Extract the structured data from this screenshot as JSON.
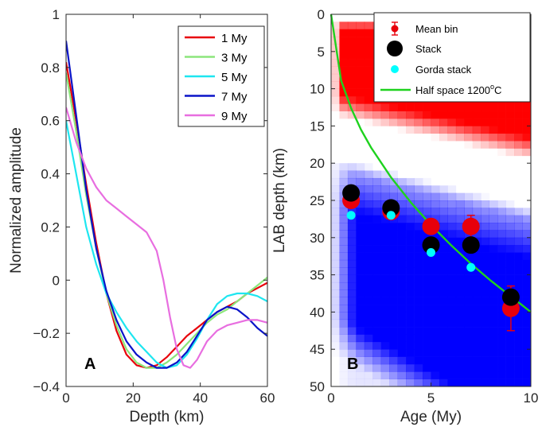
{
  "chart_data": [
    {
      "type": "line",
      "panel_label": "A",
      "xlabel": "Depth (km)",
      "ylabel": "Normalized amplitude",
      "xlim": [
        0,
        60
      ],
      "ylim": [
        -0.4,
        1
      ],
      "xticks": [
        "0",
        "20",
        "40",
        "60"
      ],
      "yticks": [
        "−0.4",
        "−0.2",
        "0",
        "0.2",
        "0.4",
        "0.6",
        "0.8",
        "1"
      ],
      "legend_position": "top-right",
      "series": [
        {
          "name": "1 My",
          "color": "#e8000b",
          "x": [
            0,
            3,
            6,
            9,
            12,
            15,
            18,
            21,
            24,
            27,
            30,
            33,
            36,
            39,
            42,
            45,
            48,
            51,
            54,
            57,
            60
          ],
          "y": [
            0.82,
            0.6,
            0.36,
            0.14,
            -0.05,
            -0.19,
            -0.28,
            -0.32,
            -0.33,
            -0.32,
            -0.29,
            -0.25,
            -0.21,
            -0.18,
            -0.15,
            -0.12,
            -0.1,
            -0.08,
            -0.05,
            -0.03,
            -0.01
          ]
        },
        {
          "name": "3 My",
          "color": "#8ce67c",
          "x": [
            0,
            3,
            6,
            9,
            12,
            15,
            18,
            21,
            24,
            27,
            30,
            33,
            36,
            39,
            42,
            45,
            48,
            51,
            54,
            57,
            60
          ],
          "y": [
            0.78,
            0.56,
            0.32,
            0.12,
            -0.05,
            -0.17,
            -0.26,
            -0.31,
            -0.33,
            -0.33,
            -0.31,
            -0.28,
            -0.24,
            -0.2,
            -0.16,
            -0.13,
            -0.11,
            -0.08,
            -0.05,
            -0.02,
            0.01
          ]
        },
        {
          "name": "5 My",
          "color": "#1ee6f0",
          "x": [
            0,
            3,
            6,
            9,
            12,
            15,
            18,
            21,
            24,
            27,
            30,
            33,
            36,
            39,
            42,
            45,
            48,
            51,
            54,
            57,
            60
          ],
          "y": [
            0.6,
            0.4,
            0.2,
            0.06,
            -0.05,
            -0.12,
            -0.18,
            -0.23,
            -0.27,
            -0.31,
            -0.33,
            -0.32,
            -0.28,
            -0.22,
            -0.15,
            -0.09,
            -0.06,
            -0.05,
            -0.05,
            -0.06,
            -0.08
          ]
        },
        {
          "name": "7 My",
          "color": "#0a14c8",
          "x": [
            0,
            3,
            6,
            9,
            12,
            15,
            18,
            21,
            24,
            27,
            30,
            33,
            36,
            39,
            42,
            45,
            48,
            51,
            54,
            57,
            60
          ],
          "y": [
            0.9,
            0.62,
            0.34,
            0.12,
            -0.04,
            -0.15,
            -0.23,
            -0.28,
            -0.31,
            -0.33,
            -0.33,
            -0.31,
            -0.27,
            -0.21,
            -0.15,
            -0.12,
            -0.1,
            -0.11,
            -0.14,
            -0.18,
            -0.21
          ]
        },
        {
          "name": "9 My",
          "color": "#e86ee0",
          "x": [
            0,
            3,
            6,
            9,
            12,
            15,
            18,
            21,
            24,
            27,
            29,
            31,
            33,
            35,
            37,
            39,
            42,
            45,
            48,
            51,
            54,
            57,
            60
          ],
          "y": [
            0.65,
            0.52,
            0.42,
            0.35,
            0.3,
            0.27,
            0.24,
            0.21,
            0.18,
            0.11,
            0.0,
            -0.14,
            -0.26,
            -0.32,
            -0.33,
            -0.3,
            -0.23,
            -0.19,
            -0.17,
            -0.16,
            -0.15,
            -0.15,
            -0.16
          ]
        }
      ]
    },
    {
      "type": "heatmap",
      "panel_label": "B",
      "xlabel": "Age (My)",
      "ylabel": "LAB depth (km)",
      "xlim": [
        0,
        10
      ],
      "ylim": [
        0,
        50
      ],
      "y_reversed": true,
      "xticks": [
        "0",
        "5",
        "10"
      ],
      "yticks": [
        "0",
        "5",
        "10",
        "15",
        "20",
        "25",
        "30",
        "35",
        "40",
        "45",
        "50"
      ],
      "legend_position": "top-right",
      "background": {
        "positive_color": "#ff0000",
        "negative_color": "#0000ff",
        "positive_band_km": [
          1,
          14
        ],
        "negative_band_km": [
          21,
          50
        ]
      },
      "legend": {
        "mean_bin": "Mean bin",
        "stack": "Stack",
        "gorda_stack": "Gorda stack",
        "half_space": "Half space 1200",
        "half_space_degree": "o",
        "half_space_unit": "C"
      },
      "series": [
        {
          "name": "Mean bin",
          "color": "#e8000b",
          "x": [
            1,
            3,
            5,
            7,
            9
          ],
          "y": [
            25,
            26.5,
            28.5,
            28.5,
            39.5
          ],
          "err": [
            0,
            0,
            0,
            1.5,
            3
          ]
        },
        {
          "name": "Stack",
          "color": "#000000",
          "x": [
            1,
            3,
            5,
            7,
            9
          ],
          "y": [
            24,
            26,
            31,
            31,
            38
          ]
        },
        {
          "name": "Gorda stack",
          "color": "#00ffff",
          "x": [
            1,
            3,
            5,
            7
          ],
          "y": [
            27,
            27,
            32,
            34
          ]
        },
        {
          "name": "Half space 1200°C",
          "color": "#1ed21e",
          "x": [
            0,
            0.5,
            1,
            1.5,
            2,
            3,
            4,
            5,
            6,
            7,
            8,
            9,
            10
          ],
          "y": [
            0,
            8.9,
            12.6,
            15.5,
            17.9,
            21.9,
            25.3,
            28.3,
            31.0,
            33.5,
            35.8,
            37.9,
            40.0
          ]
        }
      ]
    }
  ]
}
